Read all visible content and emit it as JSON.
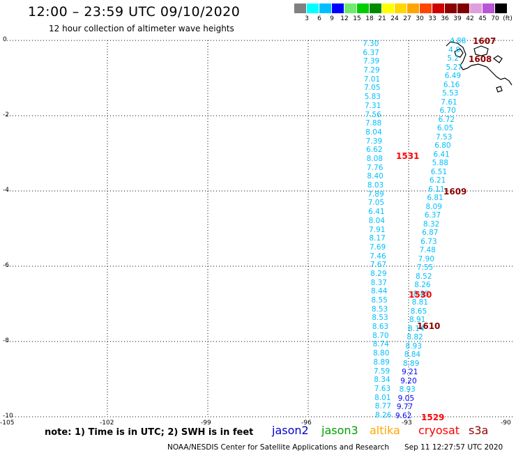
{
  "title": "12:00 – 23:59 UTC 09/10/2020",
  "subtitle": "12 hour collection of altimeter wave heights",
  "colorbar": {
    "colors": [
      "#808080",
      "#00ffff",
      "#00bfff",
      "#0000ff",
      "#6eeb6e",
      "#00cd00",
      "#008b00",
      "#ffff00",
      "#ffd700",
      "#ffa500",
      "#ff4500",
      "#cd0000",
      "#8b0000",
      "#800000",
      "#dda0dd",
      "#ba55d3",
      "#000000"
    ],
    "labels": [
      "3",
      "6",
      "9",
      "12",
      "15",
      "18",
      "21",
      "24",
      "27",
      "30",
      "33",
      "36",
      "39",
      "42",
      "45",
      "70"
    ],
    "unit": "(ft)"
  },
  "axes": {
    "lon_ticks": [
      "-105",
      "-102",
      "-99",
      "-96",
      "-93",
      "-90"
    ],
    "lat_ticks": [
      "0",
      "-2",
      "-4",
      "-6",
      "-8",
      "-10"
    ],
    "lon_range": [
      -105,
      -90
    ],
    "lat_range": [
      -10,
      0
    ]
  },
  "track_west": {
    "color": "#00bfff",
    "values": [
      "7.30",
      "6.37",
      "7.39",
      "7.29",
      "7.01",
      "7.05",
      "5.83",
      "7.31",
      "7.56",
      "7.88",
      "8.04",
      "7.39",
      "6.62",
      "8.08",
      "7.76",
      "8.40",
      "8.03",
      "7.89",
      "7.05",
      "6.41",
      "8.04",
      "7.91",
      "8.17",
      "7.69",
      "7.46",
      "7.67",
      "8.29",
      "8.37",
      "8.44",
      "8.55",
      "8.53",
      "8.53",
      "8.63",
      "8.70",
      "8.74",
      "8.80",
      "8.89",
      "7.59",
      "8.34",
      "7.63",
      "8.01",
      "8.77",
      "8.26"
    ]
  },
  "track_east": {
    "color": "#00bfff",
    "values": [
      "4.88",
      "4.8",
      "5.2",
      "5.27",
      "6.49",
      "6.16",
      "5.53",
      "7.61",
      "6.70",
      "6.72",
      "6.05",
      "7.53",
      "6.80",
      "6.41",
      "5.88",
      "6.51",
      "6.21",
      "6.11",
      "6.81",
      "8.09",
      "6.37",
      "8.32",
      "6.87",
      "6.73",
      "7.48",
      "7.90",
      "7.55",
      "8.52",
      "8.26",
      "8.85",
      "8.81",
      "8.65",
      "8.91",
      "8.14",
      "8.82",
      "8.93",
      "8.84",
      "8.89",
      "9.21",
      "9.20",
      "8.93",
      "9.05",
      "9.77",
      "9.62"
    ]
  },
  "time_labels": [
    {
      "text": "1607",
      "color": "#8b0000"
    },
    {
      "text": "1608",
      "color": "#8b0000"
    },
    {
      "text": "1531",
      "color": "#ff0000"
    },
    {
      "text": "1609",
      "color": "#8b0000"
    },
    {
      "text": "1530",
      "color": "#ff0000"
    },
    {
      "text": "1610",
      "color": "#8b0000"
    },
    {
      "text": "1529",
      "color": "#ff0000"
    }
  ],
  "note": "note:  1) Time is in UTC;  2) SWH is in feet",
  "satellites": [
    {
      "name": "jason2",
      "color": "#0000cd"
    },
    {
      "name": "jason3",
      "color": "#00a000"
    },
    {
      "name": "altika",
      "color": "#ffa500"
    },
    {
      "name": "cryosat",
      "color": "#ff0000"
    },
    {
      "name": "s3a",
      "color": "#8b0000"
    }
  ],
  "credit": "NOAA/NESDIS Center for Satellite Applications and Research",
  "timestamp": "Sep 11 12:27:57 UTC 2020"
}
